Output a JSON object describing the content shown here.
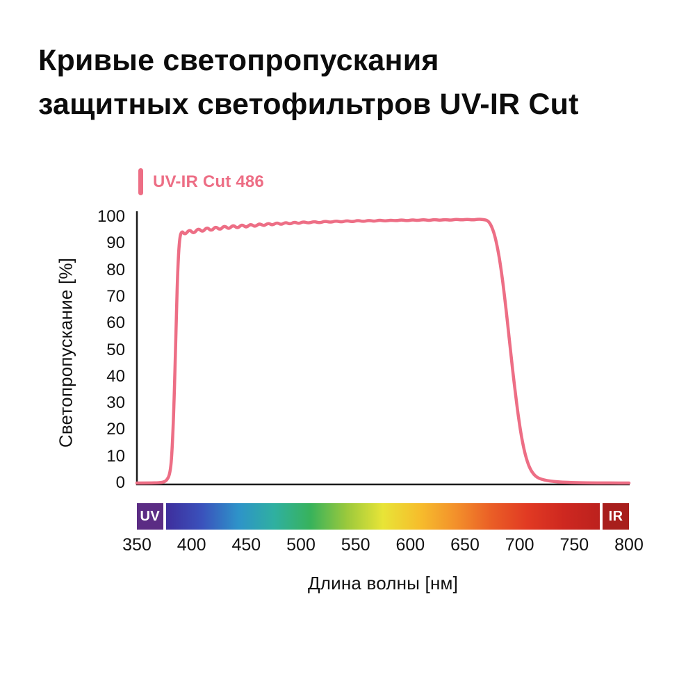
{
  "title": {
    "line1": "Кривые светопропускания",
    "line2": "защитных светофильтров UV-IR Cut"
  },
  "legend": {
    "label": "UV-IR Cut 486"
  },
  "chart_data": {
    "type": "line",
    "title": "Кривые светопропускания защитных светофильтров UV-IR Cut",
    "xlabel": "Длина волны  [нм]",
    "ylabel": "Светопропускание  [%]",
    "xlim": [
      350,
      800
    ],
    "ylim": [
      0,
      100
    ],
    "x_ticks": [
      350,
      400,
      450,
      500,
      550,
      600,
      650,
      700,
      750,
      800
    ],
    "y_ticks": [
      0,
      10,
      20,
      30,
      40,
      50,
      60,
      70,
      80,
      90,
      100
    ],
    "grid": false,
    "legend_position": "top-left",
    "axis_color": "#1a1a1a",
    "series": [
      {
        "name": "UV-IR Cut 486",
        "color": "#ED6E85",
        "points": [
          [
            350,
            0
          ],
          [
            362,
            0
          ],
          [
            370,
            0.1
          ],
          [
            374,
            0.3
          ],
          [
            377,
            0.9
          ],
          [
            380,
            3
          ],
          [
            382,
            10
          ],
          [
            384,
            30
          ],
          [
            386,
            62
          ],
          [
            387.5,
            82
          ],
          [
            389,
            92
          ],
          [
            391,
            94.8
          ],
          [
            394,
            93.2
          ],
          [
            398,
            95.3
          ],
          [
            402,
            93.6
          ],
          [
            406,
            95.8
          ],
          [
            410,
            94.2
          ],
          [
            414,
            96.2
          ],
          [
            418,
            94.6
          ],
          [
            422,
            96.4
          ],
          [
            426,
            95
          ],
          [
            430,
            96.8
          ],
          [
            434,
            95.3
          ],
          [
            438,
            97
          ],
          [
            442,
            95.6
          ],
          [
            446,
            97.2
          ],
          [
            450,
            95.9
          ],
          [
            454,
            97.4
          ],
          [
            458,
            96.2
          ],
          [
            462,
            97.6
          ],
          [
            466,
            96.5
          ],
          [
            470,
            97.7
          ],
          [
            474,
            96.8
          ],
          [
            478,
            97.9
          ],
          [
            482,
            97
          ],
          [
            486,
            98
          ],
          [
            490,
            97.2
          ],
          [
            494,
            98.1
          ],
          [
            498,
            97.4
          ],
          [
            502,
            98.2
          ],
          [
            507,
            97.6
          ],
          [
            512,
            98.3
          ],
          [
            517,
            97.7
          ],
          [
            522,
            98.4
          ],
          [
            527,
            97.9
          ],
          [
            532,
            98.5
          ],
          [
            537,
            98
          ],
          [
            542,
            98.6
          ],
          [
            547,
            98.1
          ],
          [
            552,
            98.7
          ],
          [
            557,
            98.2
          ],
          [
            562,
            98.7
          ],
          [
            567,
            98.3
          ],
          [
            572,
            98.8
          ],
          [
            577,
            98.4
          ],
          [
            582,
            98.8
          ],
          [
            587,
            98.5
          ],
          [
            592,
            98.9
          ],
          [
            597,
            98.5
          ],
          [
            602,
            98.9
          ],
          [
            607,
            98.6
          ],
          [
            612,
            99
          ],
          [
            617,
            98.6
          ],
          [
            622,
            99
          ],
          [
            627,
            98.7
          ],
          [
            632,
            99
          ],
          [
            637,
            98.7
          ],
          [
            642,
            99.1
          ],
          [
            647,
            98.8
          ],
          [
            652,
            99.1
          ],
          [
            657,
            98.8
          ],
          [
            662,
            99.1
          ],
          [
            667,
            99
          ],
          [
            671,
            98.6
          ],
          [
            674,
            96.8
          ],
          [
            677,
            93.5
          ],
          [
            680,
            88
          ],
          [
            683,
            80.5
          ],
          [
            686,
            71
          ],
          [
            689,
            60
          ],
          [
            692,
            48.5
          ],
          [
            695,
            37.5
          ],
          [
            698,
            27.5
          ],
          [
            701,
            19
          ],
          [
            704,
            12.5
          ],
          [
            707,
            8
          ],
          [
            710,
            5
          ],
          [
            713,
            3.2
          ],
          [
            716,
            2.1
          ],
          [
            720,
            1.4
          ],
          [
            725,
            0.9
          ],
          [
            731,
            0.6
          ],
          [
            739,
            0.35
          ],
          [
            750,
            0.15
          ],
          [
            765,
            0.05
          ],
          [
            800,
            0
          ]
        ]
      }
    ],
    "spectrum_bar": {
      "uv": {
        "label": "UV",
        "color": "#5B2C84",
        "range_nm": [
          350,
          374
        ]
      },
      "ir": {
        "label": "IR",
        "color": "#A81E1C",
        "range_nm": [
          776,
          800
        ]
      },
      "gradient_range_nm": [
        376.5,
        773.5
      ],
      "gradient_stops": [
        "#3E2E9C",
        "#3A52BC",
        "#2E93C9",
        "#2FB0A0",
        "#38B25B",
        "#9BC93C",
        "#E8E437",
        "#F6BE2C",
        "#F3912B",
        "#EA5E26",
        "#E13A23",
        "#CE2820",
        "#BC211E"
      ]
    }
  }
}
